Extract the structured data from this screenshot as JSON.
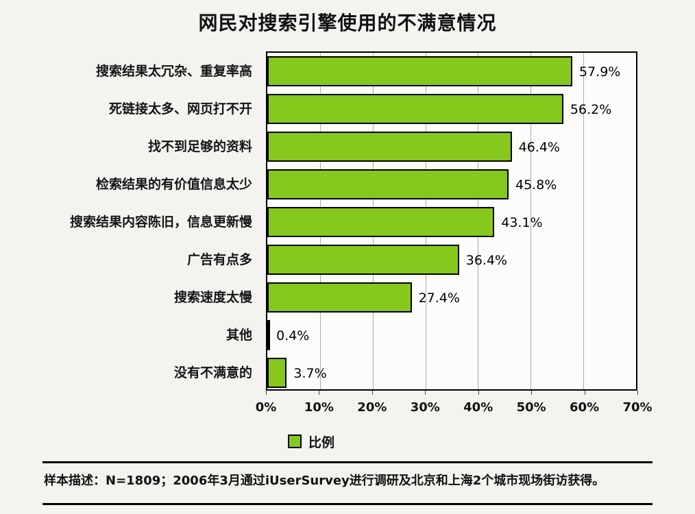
{
  "chart_data": {
    "type": "bar",
    "orientation": "horizontal",
    "title": "网民对搜索引擎使用的不满意情况",
    "categories": [
      "搜索结果太冗杂、重复率高",
      "死链接太多、网页打不开",
      "找不到足够的资料",
      "检索结果的有价值信息太少",
      "搜索结果内容陈旧，信息更新慢",
      "广告有点多",
      "搜索速度太慢",
      "其他",
      "没有不满意的"
    ],
    "values": [
      57.9,
      56.2,
      46.4,
      45.8,
      43.1,
      36.4,
      27.4,
      0.4,
      3.7
    ],
    "value_label_suffix": "%",
    "x_ticks": [
      "0%",
      "10%",
      "20%",
      "30%",
      "40%",
      "50%",
      "60%",
      "70%"
    ],
    "xlim": [
      0,
      70
    ],
    "xlabel": "",
    "ylabel": "",
    "grid": true,
    "legend": {
      "label": "比例",
      "position": "bottom"
    },
    "colors": {
      "bar_fill": "#86C81D",
      "bar_border": "#000000",
      "gridline": "#ABABAB",
      "plot_background": "#FCFCFA",
      "page_background": "#F4F3F0"
    }
  },
  "footer": {
    "note": "样本描述：N=1809；2006年3月通过iUserSurvey进行调研及北京和上海2个城市现场街访获得。"
  }
}
